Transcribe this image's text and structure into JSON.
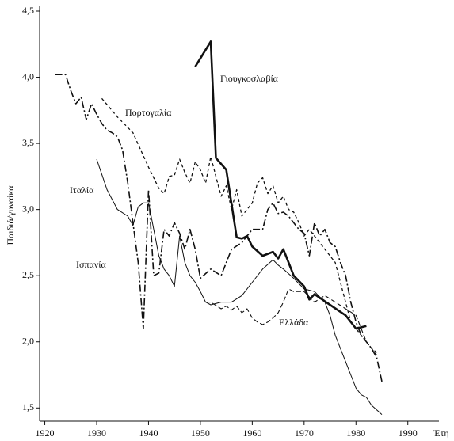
{
  "chart_data": {
    "type": "line",
    "xlabel": "Έτη",
    "ylabel": "Παιδιά/γυναίκα",
    "xlim": [
      1919,
      1996
    ],
    "ylim": [
      1.4,
      4.5
    ],
    "xticks": [
      1920,
      1930,
      1940,
      1950,
      1960,
      1970,
      1980,
      1990
    ],
    "yticks": [
      {
        "value": 1.5,
        "label": "1,5"
      },
      {
        "value": 2.0,
        "label": "2,0"
      },
      {
        "value": 2.5,
        "label": "2,5"
      },
      {
        "value": 3.0,
        "label": "3,0"
      },
      {
        "value": 3.5,
        "label": "3,5"
      },
      {
        "value": 4.0,
        "label": "4,0"
      },
      {
        "value": 4.5,
        "label": "4,5"
      }
    ],
    "series": [
      {
        "name": "Γιουγκοσλαβία",
        "color": "#111111",
        "width": 2.6,
        "dash": "none",
        "x": [
          1949,
          1952,
          1953,
          1955,
          1957,
          1958,
          1959,
          1960,
          1962,
          1964,
          1965,
          1966,
          1967,
          1968,
          1970,
          1971,
          1972,
          1975,
          1978,
          1980,
          1982
        ],
        "values": [
          4.08,
          4.27,
          3.39,
          3.3,
          2.79,
          2.78,
          2.8,
          2.72,
          2.65,
          2.68,
          2.63,
          2.7,
          2.6,
          2.5,
          2.42,
          2.32,
          2.36,
          2.28,
          2.2,
          2.1,
          2.12
        ]
      },
      {
        "name": "Πορτογαλία",
        "color": "#111111",
        "width": 1.3,
        "dash": "4,3",
        "x": [
          1931,
          1934,
          1937,
          1940,
          1942,
          1943,
          1944,
          1945,
          1946,
          1947,
          1948,
          1949,
          1950,
          1951,
          1952,
          1953,
          1954,
          1955,
          1956,
          1957,
          1958,
          1959,
          1960,
          1961,
          1962,
          1963,
          1964,
          1965,
          1966,
          1967,
          1968,
          1969,
          1970,
          1971,
          1972,
          1973,
          1974,
          1975,
          1976,
          1977,
          1978,
          1979,
          1980,
          1981,
          1982,
          1983,
          1984
        ],
        "values": [
          3.84,
          3.7,
          3.58,
          3.32,
          3.16,
          3.12,
          3.25,
          3.26,
          3.38,
          3.28,
          3.2,
          3.36,
          3.3,
          3.2,
          3.4,
          3.25,
          3.1,
          3.18,
          3.0,
          3.15,
          2.95,
          3.0,
          3.05,
          3.2,
          3.24,
          3.12,
          3.18,
          3.05,
          3.1,
          3.0,
          2.98,
          2.9,
          2.8,
          2.85,
          2.8,
          2.75,
          2.7,
          2.65,
          2.6,
          2.45,
          2.3,
          2.15,
          2.1,
          2.05,
          2.0,
          1.95,
          1.92
        ]
      },
      {
        "name": "Ιταλία",
        "color": "#111111",
        "width": 1,
        "dash": "none",
        "x": [
          1930,
          1932,
          1934,
          1936,
          1937,
          1938,
          1939,
          1940,
          1941,
          1942,
          1943,
          1944,
          1945,
          1946,
          1947,
          1948,
          1949,
          1950,
          1951,
          1952,
          1954,
          1956,
          1958,
          1960,
          1962,
          1964,
          1965,
          1966,
          1968,
          1970,
          1972,
          1974,
          1975,
          1976,
          1977,
          1978,
          1979,
          1980,
          1981,
          1982,
          1983,
          1985
        ],
        "values": [
          3.38,
          3.15,
          3.0,
          2.95,
          2.88,
          3.02,
          3.05,
          3.05,
          2.85,
          2.65,
          2.55,
          2.5,
          2.42,
          2.8,
          2.6,
          2.5,
          2.45,
          2.38,
          2.3,
          2.28,
          2.3,
          2.3,
          2.35,
          2.45,
          2.55,
          2.62,
          2.58,
          2.55,
          2.48,
          2.4,
          2.38,
          2.3,
          2.2,
          2.05,
          1.95,
          1.85,
          1.75,
          1.65,
          1.6,
          1.58,
          1.52,
          1.45
        ]
      },
      {
        "name": "Ισπανία",
        "color": "#111111",
        "width": 1.6,
        "dash": "9,3,2,3",
        "x": [
          1922,
          1924,
          1925,
          1926,
          1927,
          1928,
          1929,
          1930,
          1931,
          1932,
          1933,
          1934,
          1935,
          1936,
          1937,
          1938,
          1939,
          1940,
          1941,
          1942,
          1943,
          1944,
          1945,
          1946,
          1947,
          1948,
          1949,
          1950,
          1952,
          1954,
          1956,
          1958,
          1960,
          1962,
          1963,
          1964,
          1965,
          1966,
          1967,
          1968,
          1969,
          1970,
          1971,
          1972,
          1973,
          1974,
          1975,
          1976,
          1977,
          1978,
          1979,
          1980,
          1981,
          1982,
          1983,
          1984,
          1985
        ],
        "values": [
          4.02,
          4.02,
          3.9,
          3.8,
          3.85,
          3.68,
          3.8,
          3.72,
          3.65,
          3.6,
          3.58,
          3.55,
          3.45,
          3.2,
          2.9,
          2.6,
          2.1,
          3.15,
          2.5,
          2.52,
          2.85,
          2.8,
          2.9,
          2.82,
          2.7,
          2.85,
          2.7,
          2.48,
          2.55,
          2.5,
          2.7,
          2.75,
          2.85,
          2.85,
          3.0,
          3.05,
          2.97,
          2.98,
          2.95,
          2.9,
          2.85,
          2.82,
          2.65,
          2.9,
          2.8,
          2.85,
          2.75,
          2.72,
          2.6,
          2.5,
          2.3,
          2.15,
          2.05,
          2.0,
          1.95,
          1.88,
          1.7
        ]
      },
      {
        "name": "Ελλάδα",
        "color": "#111111",
        "width": 1.1,
        "dash": "6,3",
        "x": [
          1951,
          1952,
          1954,
          1955,
          1956,
          1957,
          1958,
          1959,
          1960,
          1961,
          1962,
          1963,
          1964,
          1965,
          1966,
          1967,
          1968,
          1970,
          1972,
          1974,
          1976,
          1978,
          1980,
          1982,
          1983,
          1984
        ],
        "values": [
          2.3,
          2.3,
          2.25,
          2.27,
          2.24,
          2.27,
          2.22,
          2.25,
          2.18,
          2.15,
          2.13,
          2.15,
          2.18,
          2.22,
          2.3,
          2.4,
          2.38,
          2.38,
          2.3,
          2.35,
          2.3,
          2.25,
          2.2,
          2.0,
          1.95,
          1.9
        ]
      }
    ]
  }
}
